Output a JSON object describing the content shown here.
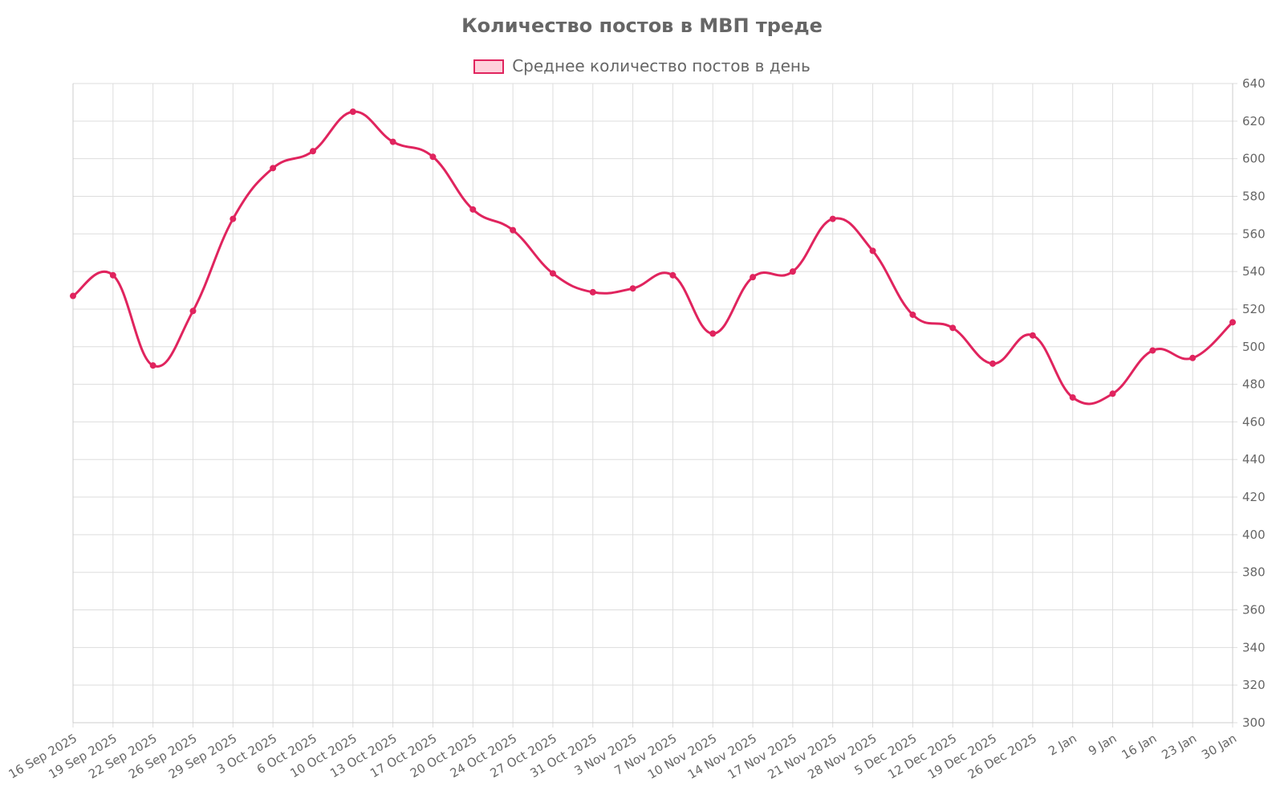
{
  "chart_data": {
    "type": "line",
    "title": "Количество постов в МВП треде",
    "legend_position": "top",
    "grid": true,
    "color": "#e0245e",
    "fill_color": "#ffd1dc",
    "ylim": [
      300,
      640
    ],
    "y_ticks": [
      300,
      320,
      340,
      360,
      380,
      400,
      420,
      440,
      460,
      480,
      500,
      520,
      540,
      560,
      580,
      600,
      620,
      640
    ],
    "categories": [
      "16 Sep 2025",
      "19 Sep 2025",
      "22 Sep 2025",
      "26 Sep 2025",
      "29 Sep 2025",
      "3 Oct 2025",
      "6 Oct 2025",
      "10 Oct 2025",
      "13 Oct 2025",
      "17 Oct 2025",
      "20 Oct 2025",
      "24 Oct 2025",
      "27 Oct 2025",
      "31 Oct 2025",
      "3 Nov 2025",
      "7 Nov 2025",
      "10 Nov 2025",
      "14 Nov 2025",
      "17 Nov 2025",
      "21 Nov 2025",
      "28 Nov 2025",
      "5 Dec 2025",
      "12 Dec 2025",
      "19 Dec 2025",
      "26 Dec 2025",
      "2 Jan",
      "9 Jan",
      "16 Jan",
      "23 Jan",
      "30 Jan"
    ],
    "series": [
      {
        "name": "Среднее количество постов в день",
        "values": [
          527,
          538,
          490,
          519,
          568,
          595,
          604,
          625,
          609,
          601,
          573,
          562,
          539,
          529,
          531,
          538,
          507,
          537,
          540,
          568,
          551,
          517,
          510,
          491,
          506,
          473,
          475,
          498,
          494,
          513
        ]
      }
    ]
  }
}
